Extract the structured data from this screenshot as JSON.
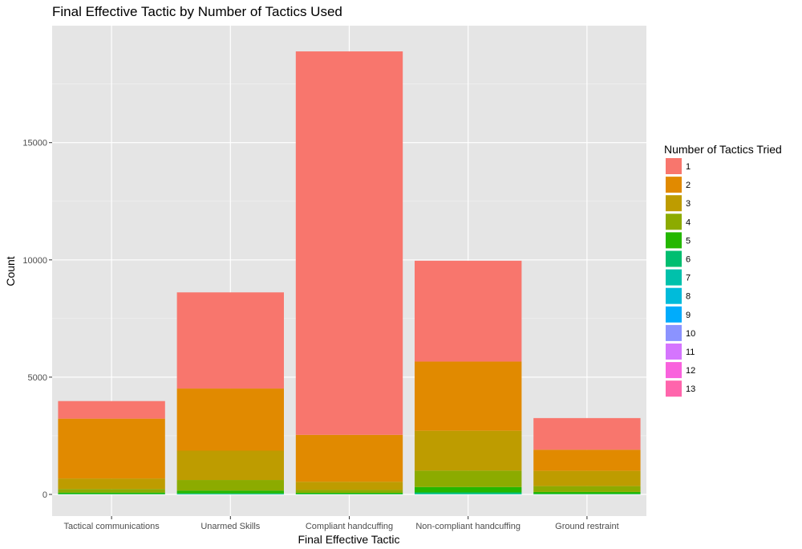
{
  "chart_data": {
    "type": "bar",
    "stacked": true,
    "title": "Final Effective Tactic by Number of Tactics Used",
    "xlabel": "Final Effective Tactic",
    "ylabel": "Count",
    "ylim": [
      0,
      19700
    ],
    "yticks": [
      0,
      5000,
      10000,
      15000
    ],
    "ytick_labels": [
      "0",
      "5000",
      "10000",
      "15000"
    ],
    "grid": true,
    "legend_position": "right",
    "legend_title": "Number of Tactics Tried",
    "categories": [
      "Tactical communications",
      "Unarmed Skills",
      "Compliant handcuffing",
      "Non-compliant handcuffing",
      "Ground restraint"
    ],
    "series": [
      {
        "name": "1",
        "color": "#F8766D",
        "values": [
          750,
          4100,
          16350,
          4300,
          1350
        ]
      },
      {
        "name": "2",
        "color": "#E18A00",
        "values": [
          2550,
          2650,
          2000,
          2950,
          900
        ]
      },
      {
        "name": "3",
        "color": "#BE9C00",
        "values": [
          450,
          1250,
          350,
          1700,
          650
        ]
      },
      {
        "name": "4",
        "color": "#8CAB00",
        "values": [
          150,
          450,
          120,
          700,
          250
        ]
      },
      {
        "name": "5",
        "color": "#24B700",
        "values": [
          60,
          120,
          50,
          230,
          80
        ]
      },
      {
        "name": "6",
        "color": "#00BE70",
        "values": [
          15,
          30,
          15,
          60,
          20
        ]
      },
      {
        "name": "7",
        "color": "#00C1AB",
        "values": [
          5,
          10,
          5,
          20,
          5
        ]
      },
      {
        "name": "8",
        "color": "#00BBDA",
        "values": [
          0,
          5,
          0,
          5,
          0
        ]
      },
      {
        "name": "9",
        "color": "#00ACFC",
        "values": [
          0,
          0,
          0,
          0,
          0
        ]
      },
      {
        "name": "10",
        "color": "#8B93FF",
        "values": [
          0,
          0,
          0,
          0,
          0
        ]
      },
      {
        "name": "11",
        "color": "#D575FE",
        "values": [
          0,
          0,
          0,
          0,
          0
        ]
      },
      {
        "name": "12",
        "color": "#F962DD",
        "values": [
          0,
          0,
          0,
          0,
          0
        ]
      },
      {
        "name": "13",
        "color": "#FF65AC",
        "values": [
          0,
          0,
          0,
          0,
          0
        ]
      }
    ],
    "colors": {
      "panel_background": "#E5E5E5",
      "grid_major": "#FFFFFF",
      "tick_text": "#4D4D4D"
    }
  }
}
